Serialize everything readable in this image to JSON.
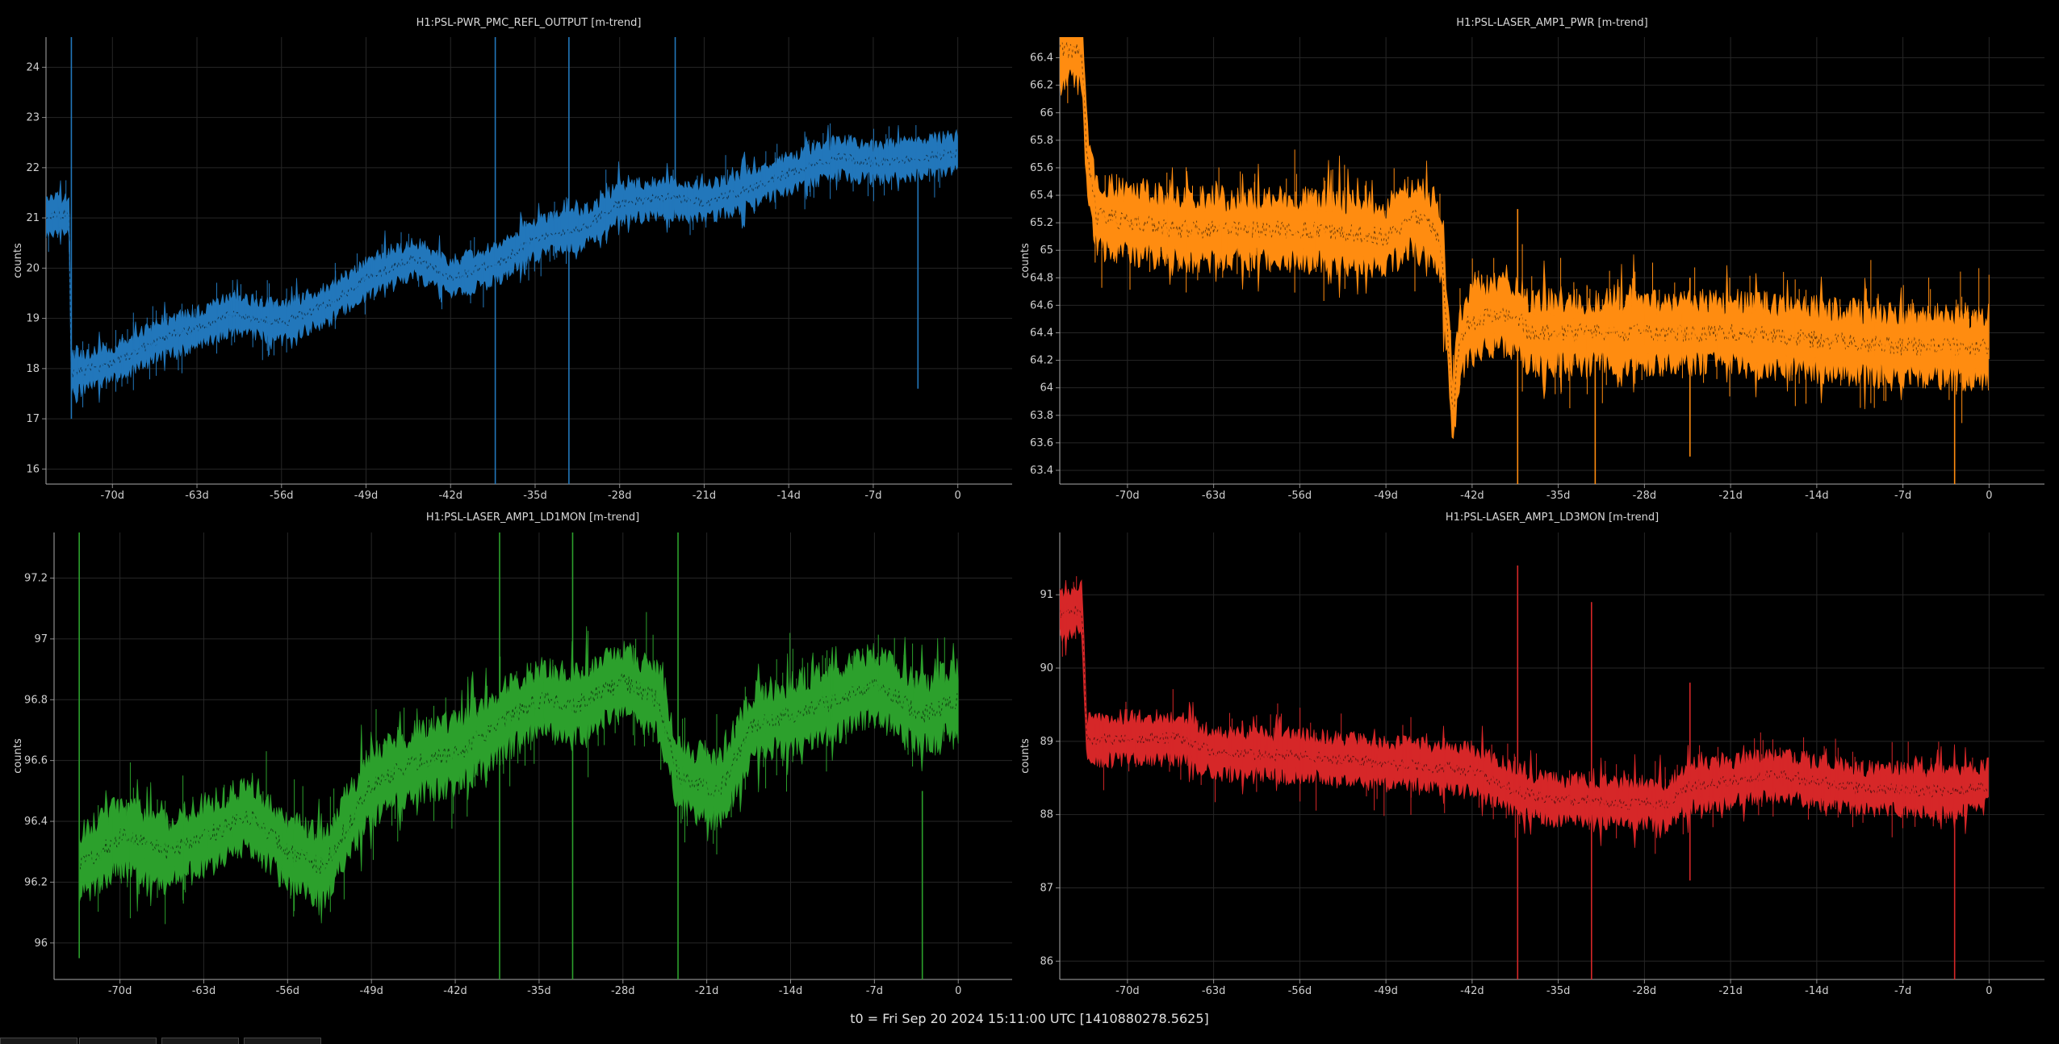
{
  "footer": "t0 = Fri Sep 20 2024 15:11:00 UTC [1410880278.5625]",
  "chart_data": [
    {
      "type": "line",
      "title": "H1:PSL-PWR_PMC_REFL_OUTPUT [m-trend]",
      "ylabel": "counts",
      "color": "#2277bb",
      "xlim": [
        -75.5,
        4.5
      ],
      "ylim": [
        15.7,
        24.6
      ],
      "xticks": [
        -70,
        -63,
        -56,
        -49,
        -42,
        -35,
        -28,
        -21,
        -14,
        -7,
        0
      ],
      "xtick_labels": [
        "-70d",
        "-63d",
        "-56d",
        "-49d",
        "-42d",
        "-35d",
        "-28d",
        "-21d",
        "-14d",
        "-7d",
        "0"
      ],
      "yticks": [
        16,
        17,
        18,
        19,
        20,
        21,
        22,
        23,
        24
      ],
      "ytick_labels": [
        "16",
        "17",
        "18",
        "19",
        "20",
        "21",
        "22",
        "23",
        "24"
      ],
      "trend": [
        [
          -75.5,
          21.0
        ],
        [
          -73.6,
          21.1
        ],
        [
          -73.4,
          17.9
        ],
        [
          -70,
          18.1
        ],
        [
          -66,
          18.6
        ],
        [
          -63,
          18.8
        ],
        [
          -60,
          19.1
        ],
        [
          -56,
          18.9
        ],
        [
          -52,
          19.3
        ],
        [
          -49,
          19.8
        ],
        [
          -45,
          20.2
        ],
        [
          -42,
          19.8
        ],
        [
          -38,
          20.1
        ],
        [
          -35,
          20.6
        ],
        [
          -31,
          20.8
        ],
        [
          -28,
          21.3
        ],
        [
          -24,
          21.4
        ],
        [
          -21,
          21.3
        ],
        [
          -17,
          21.6
        ],
        [
          -14,
          21.9
        ],
        [
          -10,
          22.2
        ],
        [
          -7,
          22.1
        ],
        [
          -3,
          22.2
        ],
        [
          0,
          22.3
        ]
      ],
      "band": 0.65,
      "spikes": [
        [
          -73.4,
          17.0,
          24.6
        ],
        [
          -38.3,
          15.7,
          24.6
        ],
        [
          -32.2,
          15.7,
          24.6
        ],
        [
          -23.4,
          21.0,
          24.6
        ],
        [
          -3.3,
          17.6,
          22.0
        ]
      ]
    },
    {
      "type": "line",
      "title": "H1:PSL-LASER_AMP1_PWR [m-trend]",
      "ylabel": "counts",
      "color": "#ff8c10",
      "xlim": [
        -75.5,
        4.5
      ],
      "ylim": [
        63.3,
        66.55
      ],
      "xticks": [
        -70,
        -63,
        -56,
        -49,
        -42,
        -35,
        -28,
        -21,
        -14,
        -7,
        0
      ],
      "xtick_labels": [
        "-70d",
        "-63d",
        "-56d",
        "-49d",
        "-42d",
        "-35d",
        "-28d",
        "-21d",
        "-14d",
        "-7d",
        "0"
      ],
      "yticks": [
        63.4,
        63.6,
        63.8,
        64,
        64.2,
        64.4,
        64.6,
        64.8,
        65,
        65.2,
        65.4,
        65.6,
        65.8,
        66,
        66.2,
        66.4
      ],
      "ytick_labels": [
        "63.4",
        "63.6",
        "63.8",
        "64",
        "64.2",
        "64.4",
        "64.6",
        "64.8",
        "65",
        "65.2",
        "65.4",
        "65.6",
        "65.8",
        "66",
        "66.2",
        "66.4"
      ],
      "trend": [
        [
          -75.5,
          66.45
        ],
        [
          -73.7,
          66.45
        ],
        [
          -73.3,
          65.7
        ],
        [
          -72.5,
          65.25
        ],
        [
          -66,
          65.15
        ],
        [
          -56,
          65.15
        ],
        [
          -49,
          65.1
        ],
        [
          -47,
          65.25
        ],
        [
          -45,
          65.15
        ],
        [
          -44.5,
          65.0
        ],
        [
          -44,
          64.4
        ],
        [
          -43.5,
          63.8
        ],
        [
          -43.2,
          64.2
        ],
        [
          -42.5,
          64.45
        ],
        [
          -40,
          64.55
        ],
        [
          -38,
          64.5
        ],
        [
          -37.5,
          64.4
        ],
        [
          -35,
          64.4
        ],
        [
          -28,
          64.4
        ],
        [
          -21,
          64.4
        ],
        [
          -14,
          64.35
        ],
        [
          -7,
          64.3
        ],
        [
          0,
          64.3
        ]
      ],
      "band": 0.45,
      "spikes": [
        [
          -38.3,
          63.3,
          65.3
        ],
        [
          -32.0,
          63.3,
          64.4
        ],
        [
          -24.3,
          63.5,
          64.8
        ],
        [
          -2.8,
          63.3,
          64.3
        ]
      ]
    },
    {
      "type": "line",
      "title": "H1:PSL-LASER_AMP1_LD1MON [m-trend]",
      "ylabel": "counts",
      "color": "#2ca02c",
      "xlim": [
        -75.5,
        4.5
      ],
      "ylim": [
        95.88,
        97.35
      ],
      "xticks": [
        -70,
        -63,
        -56,
        -49,
        -42,
        -35,
        -28,
        -21,
        -14,
        -7,
        0
      ],
      "xtick_labels": [
        "-70d",
        "-63d",
        "-56d",
        "-49d",
        "-42d",
        "-35d",
        "-28d",
        "-21d",
        "-14d",
        "-7d",
        "0"
      ],
      "yticks": [
        96,
        96.2,
        96.4,
        96.6,
        96.8,
        97,
        97.2
      ],
      "ytick_labels": [
        "96",
        "96.2",
        "96.4",
        "96.6",
        "96.8",
        "97",
        "97.2"
      ],
      "trend": [
        [
          -73.4,
          96.25
        ],
        [
          -70,
          96.35
        ],
        [
          -66,
          96.3
        ],
        [
          -63,
          96.35
        ],
        [
          -59,
          96.42
        ],
        [
          -56,
          96.3
        ],
        [
          -53,
          96.25
        ],
        [
          -49,
          96.52
        ],
        [
          -45,
          96.6
        ],
        [
          -42,
          96.62
        ],
        [
          -38,
          96.73
        ],
        [
          -35,
          96.8
        ],
        [
          -32,
          96.78
        ],
        [
          -28,
          96.86
        ],
        [
          -25,
          96.8
        ],
        [
          -23.4,
          96.55
        ],
        [
          -20,
          96.5
        ],
        [
          -17,
          96.72
        ],
        [
          -14,
          96.75
        ],
        [
          -10,
          96.8
        ],
        [
          -7,
          96.85
        ],
        [
          -3,
          96.75
        ],
        [
          0,
          96.8
        ]
      ],
      "band": 0.2,
      "spikes": [
        [
          -73.4,
          95.95,
          97.35
        ],
        [
          -38.3,
          95.88,
          97.35
        ],
        [
          -32.2,
          95.88,
          97.35
        ],
        [
          -23.4,
          95.88,
          97.35
        ],
        [
          -3.0,
          95.88,
          96.5
        ]
      ]
    },
    {
      "type": "line",
      "title": "H1:PSL-LASER_AMP1_LD3MON [m-trend]",
      "ylabel": "counts",
      "color": "#d62728",
      "xlim": [
        -75.5,
        4.5
      ],
      "ylim": [
        85.75,
        91.85
      ],
      "xticks": [
        -70,
        -63,
        -56,
        -49,
        -42,
        -35,
        -28,
        -21,
        -14,
        -7,
        0
      ],
      "xtick_labels": [
        "-70d",
        "-63d",
        "-56d",
        "-49d",
        "-42d",
        "-35d",
        "-28d",
        "-21d",
        "-14d",
        "-7d",
        "0"
      ],
      "yticks": [
        86,
        87,
        88,
        89,
        90,
        91
      ],
      "ytick_labels": [
        "86",
        "87",
        "88",
        "89",
        "90",
        "91"
      ],
      "trend": [
        [
          -75.5,
          90.75
        ],
        [
          -73.7,
          90.8
        ],
        [
          -73.3,
          89.0
        ],
        [
          -70,
          89.05
        ],
        [
          -66,
          89.05
        ],
        [
          -63,
          88.85
        ],
        [
          -56,
          88.8
        ],
        [
          -49,
          88.7
        ],
        [
          -45,
          88.65
        ],
        [
          -42,
          88.6
        ],
        [
          -40,
          88.45
        ],
        [
          -38,
          88.3
        ],
        [
          -35,
          88.2
        ],
        [
          -30,
          88.15
        ],
        [
          -26,
          88.15
        ],
        [
          -24.3,
          88.4
        ],
        [
          -21,
          88.45
        ],
        [
          -17,
          88.55
        ],
        [
          -14,
          88.45
        ],
        [
          -10,
          88.35
        ],
        [
          -7,
          88.35
        ],
        [
          -3,
          88.3
        ],
        [
          0,
          88.4
        ]
      ],
      "band": 0.55,
      "spikes": [
        [
          -38.3,
          85.75,
          91.4
        ],
        [
          -32.3,
          85.75,
          90.9
        ],
        [
          -24.3,
          87.1,
          89.8
        ],
        [
          -2.8,
          85.75,
          88.3
        ]
      ]
    }
  ]
}
